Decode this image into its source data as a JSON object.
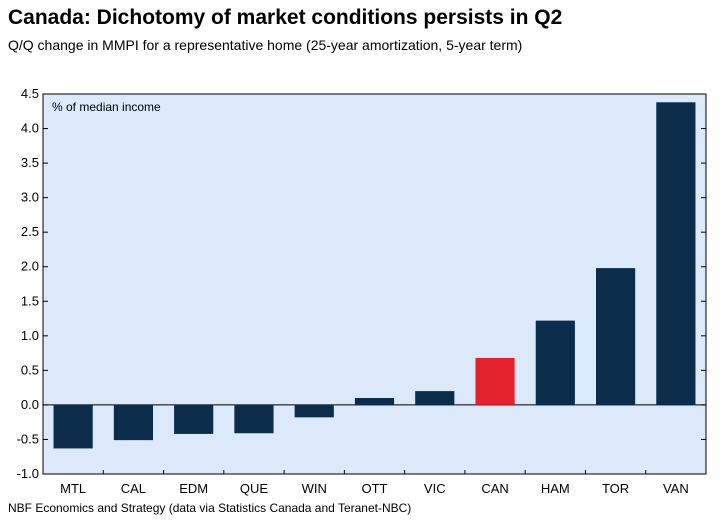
{
  "title": "Canada: Dichotomy of market conditions persists in Q2",
  "subtitle": "Q/Q change in MMPI for a representative home (25-year amortization, 5-year term)",
  "source": "NBF Economics and Strategy (data via Statistics Canada and Teranet-NBC)",
  "colors": {
    "plot_background": "#dbe9fb",
    "bar": "#0b2d4b",
    "highlight": "#e3222b"
  },
  "chart_data": {
    "type": "bar",
    "unit_label": "% of median income",
    "categories": [
      "MTL",
      "CAL",
      "EDM",
      "QUE",
      "WIN",
      "OTT",
      "VIC",
      "CAN",
      "HAM",
      "TOR",
      "VAN"
    ],
    "values": [
      -0.63,
      -0.51,
      -0.42,
      -0.41,
      -0.18,
      0.1,
      0.2,
      0.68,
      1.22,
      1.98,
      4.38
    ],
    "highlight_category": "CAN",
    "ylim": [
      -1.0,
      4.5
    ],
    "yticks": [
      "-1.0",
      "-0.5",
      "0.0",
      "0.5",
      "1.0",
      "1.5",
      "2.0",
      "2.5",
      "3.0",
      "3.5",
      "4.0",
      "4.5"
    ],
    "grid": false,
    "legend": "none"
  }
}
